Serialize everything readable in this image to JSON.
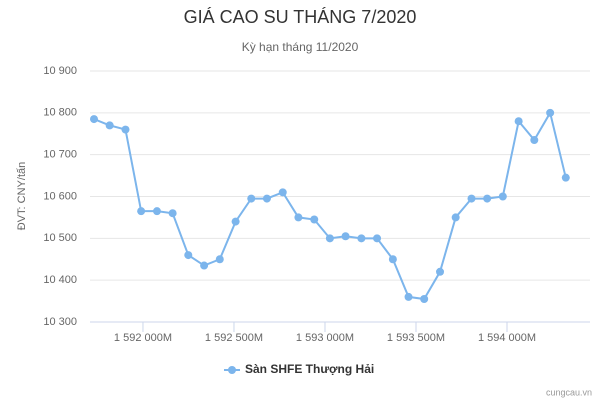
{
  "chart_data": {
    "type": "line",
    "title": "GIÁ CAO SU THÁNG 7/2020",
    "subtitle": "Kỳ hạn tháng 11/2020",
    "y_label": "ĐVT: CNY/tấn",
    "credit": "cungcau.vn",
    "x": [
      1591731,
      1591817,
      1591904,
      1591990,
      1592077,
      1592163,
      1592249,
      1592336,
      1592422,
      1592509,
      1592595,
      1592681,
      1592768,
      1592854,
      1592941,
      1593027,
      1593113,
      1593200,
      1593286,
      1593373,
      1593459,
      1593545,
      1593632,
      1593718,
      1593805,
      1593891,
      1593977,
      1594064,
      1594150,
      1594237,
      1594323
    ],
    "series": [
      {
        "name": "Sàn SHFE Thượng Hải",
        "color": "#7cb5ec",
        "values": [
          10785,
          10770,
          10760,
          10565,
          10565,
          10560,
          10460,
          10435,
          10450,
          10540,
          10595,
          10595,
          10610,
          10550,
          10545,
          10500,
          10505,
          10500,
          10500,
          10450,
          10360,
          10355,
          10420,
          10550,
          10595,
          10595,
          10600,
          10780,
          10735,
          10800,
          10645
        ]
      }
    ],
    "xlim": [
      1591709,
      1594456
    ],
    "xticks": [
      {
        "value": 1592000,
        "label": "1 592 000M"
      },
      {
        "value": 1592500,
        "label": "1 592 500M"
      },
      {
        "value": 1593000,
        "label": "1 593 000M"
      },
      {
        "value": 1593500,
        "label": "1 593 500M"
      },
      {
        "value": 1594000,
        "label": "1 594 000M"
      }
    ],
    "ylim": [
      10300,
      10900
    ],
    "yticks": [
      {
        "value": 10300,
        "label": "10 300"
      },
      {
        "value": 10400,
        "label": "10 400"
      },
      {
        "value": 10500,
        "label": "10 500"
      },
      {
        "value": 10600,
        "label": "10 600"
      },
      {
        "value": 10700,
        "label": "10 700"
      },
      {
        "value": 10800,
        "label": "10 800"
      },
      {
        "value": 10900,
        "label": "10 900"
      }
    ],
    "grid": true
  }
}
